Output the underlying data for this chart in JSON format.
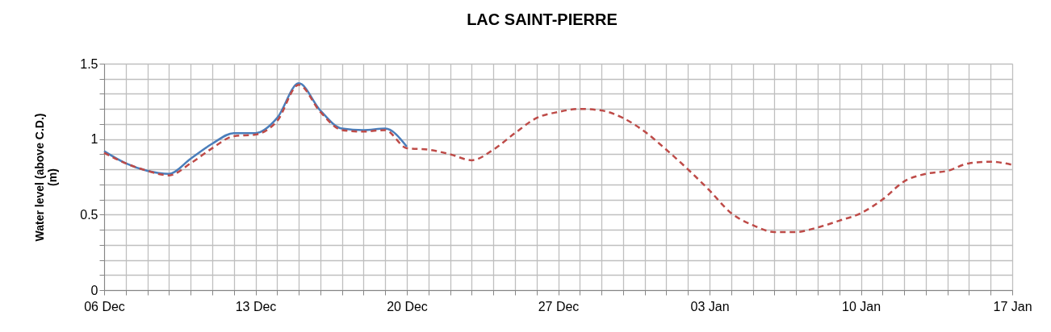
{
  "chart_data": {
    "type": "line",
    "title": "LAC SAINT-PIERRE",
    "ylabel": "Water level (above C.D.)\n(m)",
    "categories": [
      "06 Dec",
      null,
      null,
      null,
      null,
      null,
      null,
      "13 Dec",
      null,
      null,
      null,
      null,
      null,
      null,
      "20 Dec",
      null,
      null,
      null,
      null,
      null,
      null,
      "27 Dec",
      null,
      null,
      null,
      null,
      null,
      null,
      "03 Jan",
      null,
      null,
      null,
      null,
      null,
      null,
      "10 Jan",
      null,
      null,
      null,
      null,
      null,
      null,
      "17 Jan"
    ],
    "series": [
      {
        "color": "#4a7ebb",
        "line_style": "solid",
        "values": [
          0.92,
          0.84,
          0.79,
          0.77,
          0.87,
          0.97,
          1.04,
          1.04,
          1.14,
          1.37,
          1.19,
          1.07,
          1.06,
          1.07,
          0.95,
          null,
          null,
          null,
          null,
          null,
          null,
          null,
          null,
          null,
          null,
          null,
          null,
          null,
          null,
          null,
          null,
          null,
          null,
          null,
          null,
          null,
          null,
          null,
          null,
          null,
          null,
          null,
          null
        ]
      },
      {
        "color": "#be4b48",
        "line_style": "dashed",
        "values": [
          0.91,
          0.84,
          0.79,
          0.76,
          0.84,
          0.94,
          1.02,
          1.03,
          1.12,
          1.36,
          1.18,
          1.06,
          1.05,
          1.06,
          0.94,
          0.93,
          0.9,
          0.86,
          0.93,
          1.04,
          1.14,
          1.18,
          1.2,
          1.19,
          1.14,
          1.05,
          0.93,
          0.8,
          0.66,
          0.51,
          0.43,
          0.385,
          0.385,
          0.415,
          0.46,
          0.51,
          0.6,
          0.72,
          0.77,
          0.79,
          0.84,
          0.85,
          0.83
        ]
      }
    ],
    "ylim": [
      0,
      1.5
    ],
    "yticks": [
      0,
      {
        "value": 0.1,
        "label": null
      },
      {
        "value": 0.2,
        "label": null
      },
      {
        "value": 0.3,
        "label": null
      },
      {
        "value": 0.4,
        "label": null
      },
      0.5,
      {
        "value": 0.6,
        "label": null
      },
      {
        "value": 0.7,
        "label": null
      },
      {
        "value": 0.8,
        "label": null
      },
      {
        "value": 0.9,
        "label": null
      },
      1,
      {
        "value": 1.1,
        "label": null
      },
      {
        "value": 1.2,
        "label": null
      },
      {
        "value": 1.3,
        "label": null
      },
      {
        "value": 1.4,
        "label": null
      },
      1.5
    ],
    "grid": true,
    "marker": "none"
  }
}
